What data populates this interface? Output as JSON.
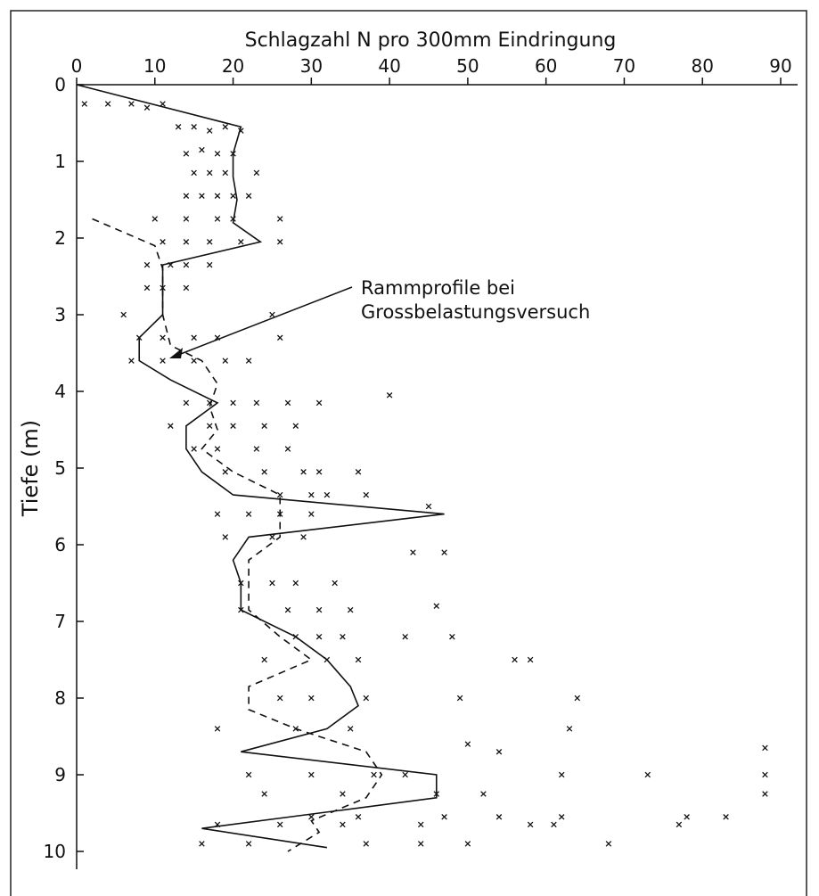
{
  "chart_data": {
    "type": "line",
    "x_label": "Schlagzahl N pro 300mm Eindringung",
    "y_label": "Tiefe (m)",
    "annotation": [
      "Rammprofile bei",
      "Grossbelastungsversuch"
    ],
    "xlim": [
      0,
      90
    ],
    "xticks": [
      0,
      10,
      20,
      30,
      40,
      50,
      60,
      70,
      80,
      90
    ],
    "ylim": [
      0,
      10
    ],
    "yticks": [
      0,
      1,
      2,
      3,
      4,
      5,
      6,
      7,
      8,
      9,
      10
    ],
    "y_inverted": true,
    "color": "#111111",
    "series": [
      {
        "style": "solid",
        "x": [
          0,
          21,
          20,
          20,
          20.5,
          20,
          23.5,
          11,
          11,
          11,
          8,
          8,
          12,
          18,
          14,
          14,
          16,
          20,
          47,
          22,
          20,
          21,
          21,
          28,
          32,
          35,
          36,
          32,
          21,
          46,
          46,
          16,
          32
        ],
        "values": [
          0,
          0.55,
          0.9,
          1.2,
          1.5,
          1.8,
          2.05,
          2.35,
          2.7,
          3.0,
          3.3,
          3.6,
          3.85,
          4.15,
          4.45,
          4.75,
          5.05,
          5.35,
          5.6,
          5.9,
          6.2,
          6.5,
          6.85,
          7.2,
          7.5,
          7.85,
          8.1,
          8.4,
          8.7,
          9.0,
          9.3,
          9.7,
          9.95
        ]
      },
      {
        "style": "dashed",
        "x": [
          2,
          10,
          11,
          11,
          11,
          12,
          16,
          18,
          17,
          18,
          16,
          20,
          26,
          26,
          26,
          22,
          22,
          22,
          26,
          30,
          22,
          22,
          28,
          37,
          39,
          37,
          30,
          31,
          27
        ],
        "values": [
          1.75,
          2.1,
          2.4,
          2.7,
          3.0,
          3.4,
          3.6,
          3.9,
          4.2,
          4.5,
          4.75,
          5.05,
          5.35,
          5.65,
          5.9,
          6.2,
          6.5,
          6.85,
          7.2,
          7.5,
          7.85,
          8.15,
          8.4,
          8.7,
          9.0,
          9.3,
          9.6,
          9.75,
          10
        ]
      },
      {
        "style": "markers",
        "x": [
          1,
          4,
          7,
          9,
          11,
          13,
          15,
          17,
          19,
          21,
          14,
          16,
          18,
          20,
          15,
          17,
          19,
          23,
          14,
          16,
          18,
          20,
          22,
          10,
          14,
          18,
          20,
          26,
          11,
          14,
          17,
          21,
          26,
          9,
          12,
          14,
          17,
          9,
          11,
          14,
          25,
          6,
          8,
          11,
          15,
          18,
          26,
          7,
          11,
          15,
          19,
          22,
          40,
          14,
          17,
          20,
          23,
          27,
          31,
          12,
          17,
          20,
          24,
          28,
          15,
          18,
          23,
          27,
          19,
          24,
          29,
          31,
          36,
          26,
          30,
          32,
          37,
          45,
          18,
          22,
          26,
          30,
          19,
          25,
          29,
          43,
          47,
          21,
          25,
          28,
          33,
          21,
          27,
          31,
          35,
          46,
          42,
          28,
          31,
          34,
          48,
          58,
          24,
          32,
          36,
          56,
          64,
          26,
          30,
          37,
          49,
          63,
          18,
          28,
          35,
          50,
          54,
          88,
          22,
          30,
          38,
          42,
          62,
          73,
          88,
          24,
          34,
          46,
          52,
          88,
          30,
          36,
          47,
          54,
          62,
          78,
          83,
          18,
          26,
          34,
          44,
          58,
          61,
          77,
          16,
          22,
          37,
          44,
          50,
          68
        ],
        "values": [
          0.25,
          0.25,
          0.25,
          0.3,
          0.25,
          0.55,
          0.55,
          0.6,
          0.55,
          0.6,
          0.9,
          0.85,
          0.9,
          0.9,
          1.15,
          1.15,
          1.15,
          1.15,
          1.45,
          1.45,
          1.45,
          1.45,
          1.45,
          1.75,
          1.75,
          1.75,
          1.75,
          1.75,
          2.05,
          2.05,
          2.05,
          2.05,
          2.05,
          2.35,
          2.35,
          2.35,
          2.35,
          2.65,
          2.65,
          2.65,
          3.0,
          3.0,
          3.3,
          3.3,
          3.3,
          3.3,
          3.3,
          3.6,
          3.6,
          3.6,
          3.6,
          3.6,
          4.05,
          4.15,
          4.15,
          4.15,
          4.15,
          4.15,
          4.15,
          4.45,
          4.45,
          4.45,
          4.45,
          4.45,
          4.75,
          4.75,
          4.75,
          4.75,
          5.05,
          5.05,
          5.05,
          5.05,
          5.05,
          5.35,
          5.35,
          5.35,
          5.35,
          5.5,
          5.6,
          5.6,
          5.6,
          5.6,
          5.9,
          5.9,
          5.9,
          6.1,
          6.1,
          6.5,
          6.5,
          6.5,
          6.5,
          6.85,
          6.85,
          6.85,
          6.85,
          6.8,
          7.2,
          7.2,
          7.2,
          7.2,
          7.2,
          7.5,
          7.5,
          7.5,
          7.5,
          7.5,
          8.0,
          8.0,
          8.0,
          8.0,
          8.0,
          8.4,
          8.4,
          8.4,
          8.4,
          8.6,
          8.7,
          8.65,
          9.0,
          9.0,
          9.0,
          9.0,
          9.0,
          9.0,
          9.0,
          9.25,
          9.25,
          9.25,
          9.25,
          9.25,
          9.55,
          9.55,
          9.55,
          9.55,
          9.55,
          9.55,
          9.55,
          9.65,
          9.65,
          9.65,
          9.65,
          9.65,
          9.65,
          9.65,
          9.9,
          9.9,
          9.9,
          9.9,
          9.9,
          9.9
        ]
      }
    ]
  }
}
